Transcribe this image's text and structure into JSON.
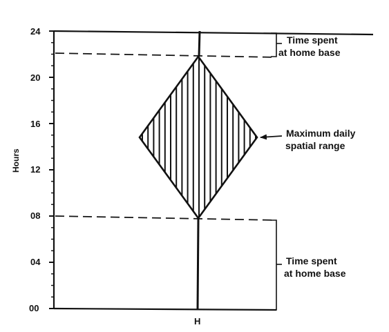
{
  "diagram": {
    "y_axis": {
      "title": "Hours",
      "ticks": [
        "24",
        "20",
        "16",
        "12",
        "08",
        "04",
        "00"
      ]
    },
    "x_axis": {
      "label": "H"
    },
    "annotations": {
      "top_home_base": [
        "Time spent",
        "at home base"
      ],
      "spatial_range": [
        "Maximum daily",
        "spatial range"
      ],
      "bottom_home_base": [
        "Time spent",
        "at home base"
      ]
    }
  }
}
